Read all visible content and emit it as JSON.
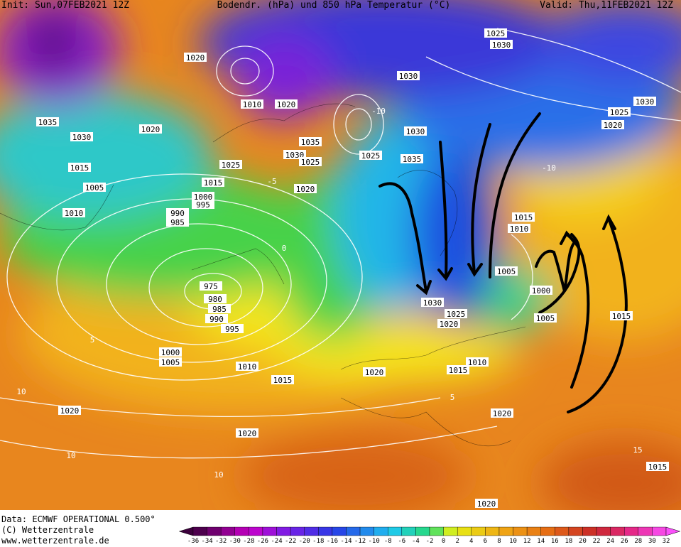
{
  "header": {
    "init": "Init: Sun,07FEB2021 12Z",
    "title": "Bodendr. (hPa) und 850 hPa Temperatur (°C)",
    "valid": "Valid: Thu,11FEB2021 12Z"
  },
  "footer": {
    "data": "Data: ECMWF OPERATIONAL 0.500°",
    "copyright": "(C) Wetterzentrale",
    "url": "www.wetterzentrale.de"
  },
  "isobar_labels": [
    1035,
    1030,
    1020,
    1020,
    1015,
    1005,
    1010,
    990,
    985,
    1000,
    995,
    1015,
    1025,
    1010,
    1020,
    1030,
    1025,
    1020,
    1035,
    1025,
    1030,
    1035,
    1030,
    1025,
    1030,
    1030,
    1025,
    1020,
    1015,
    1010,
    1005,
    1000,
    1005,
    1015,
    975,
    980,
    985,
    990,
    995,
    1000,
    1005,
    1010,
    1015,
    1020,
    1015,
    1010,
    1020,
    1020,
    1020,
    1020,
    1015,
    1030,
    1020,
    1025
  ],
  "temperature_labels": [
    -10,
    -5,
    0,
    5,
    10,
    10,
    10,
    15,
    -10,
    5
  ],
  "colorbar_labels": [
    -36,
    -34,
    -32,
    -30,
    -28,
    -26,
    -24,
    -22,
    -20,
    -18,
    -16,
    -14,
    -12,
    -10,
    -8,
    -6,
    -4,
    -2,
    0,
    2,
    4,
    6,
    8,
    10,
    12,
    14,
    16,
    18,
    20,
    22,
    24,
    26,
    28,
    30,
    32
  ]
}
